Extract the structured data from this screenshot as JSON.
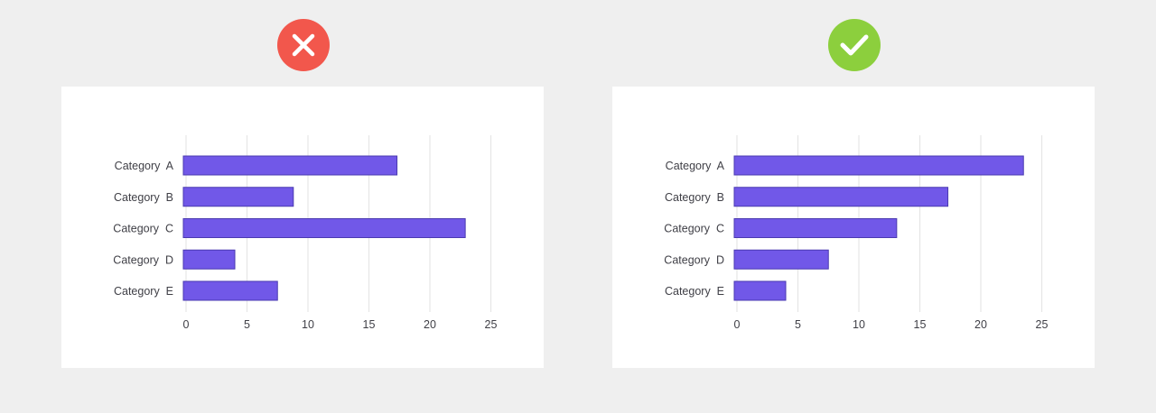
{
  "colors": {
    "background": "#efefef",
    "card": "#ffffff",
    "bar_fill": "#7158e8",
    "bar_stroke": "#4a3ab0",
    "grid": "#e6e6e6",
    "bad_badge": "#f2574c",
    "good_badge": "#8ccf3d",
    "text": "#3f3f46"
  },
  "badges": [
    {
      "icon": "close-icon",
      "status": "incorrect"
    },
    {
      "icon": "check-icon",
      "status": "correct"
    }
  ],
  "chart_data": [
    {
      "type": "bar",
      "orientation": "horizontal",
      "categories": [
        "Category  A",
        "Category  B",
        "Category  C",
        "Category  D",
        "Category  E"
      ],
      "values": [
        17.3,
        8.8,
        22.9,
        4.0,
        7.5
      ],
      "xticks": [
        "0",
        "5",
        "10",
        "15",
        "20",
        "25"
      ],
      "xlim": [
        0,
        25
      ],
      "grid": true,
      "title": "",
      "xlabel": "",
      "ylabel": ""
    },
    {
      "type": "bar",
      "orientation": "horizontal",
      "categories": [
        "Category  A",
        "Category  B",
        "Category  C",
        "Category  D",
        "Category  E"
      ],
      "values": [
        23.5,
        17.3,
        13.1,
        7.5,
        4.0
      ],
      "xticks": [
        "0",
        "5",
        "10",
        "15",
        "20",
        "25"
      ],
      "xlim": [
        0,
        25
      ],
      "grid": true,
      "title": "",
      "xlabel": "",
      "ylabel": ""
    }
  ]
}
